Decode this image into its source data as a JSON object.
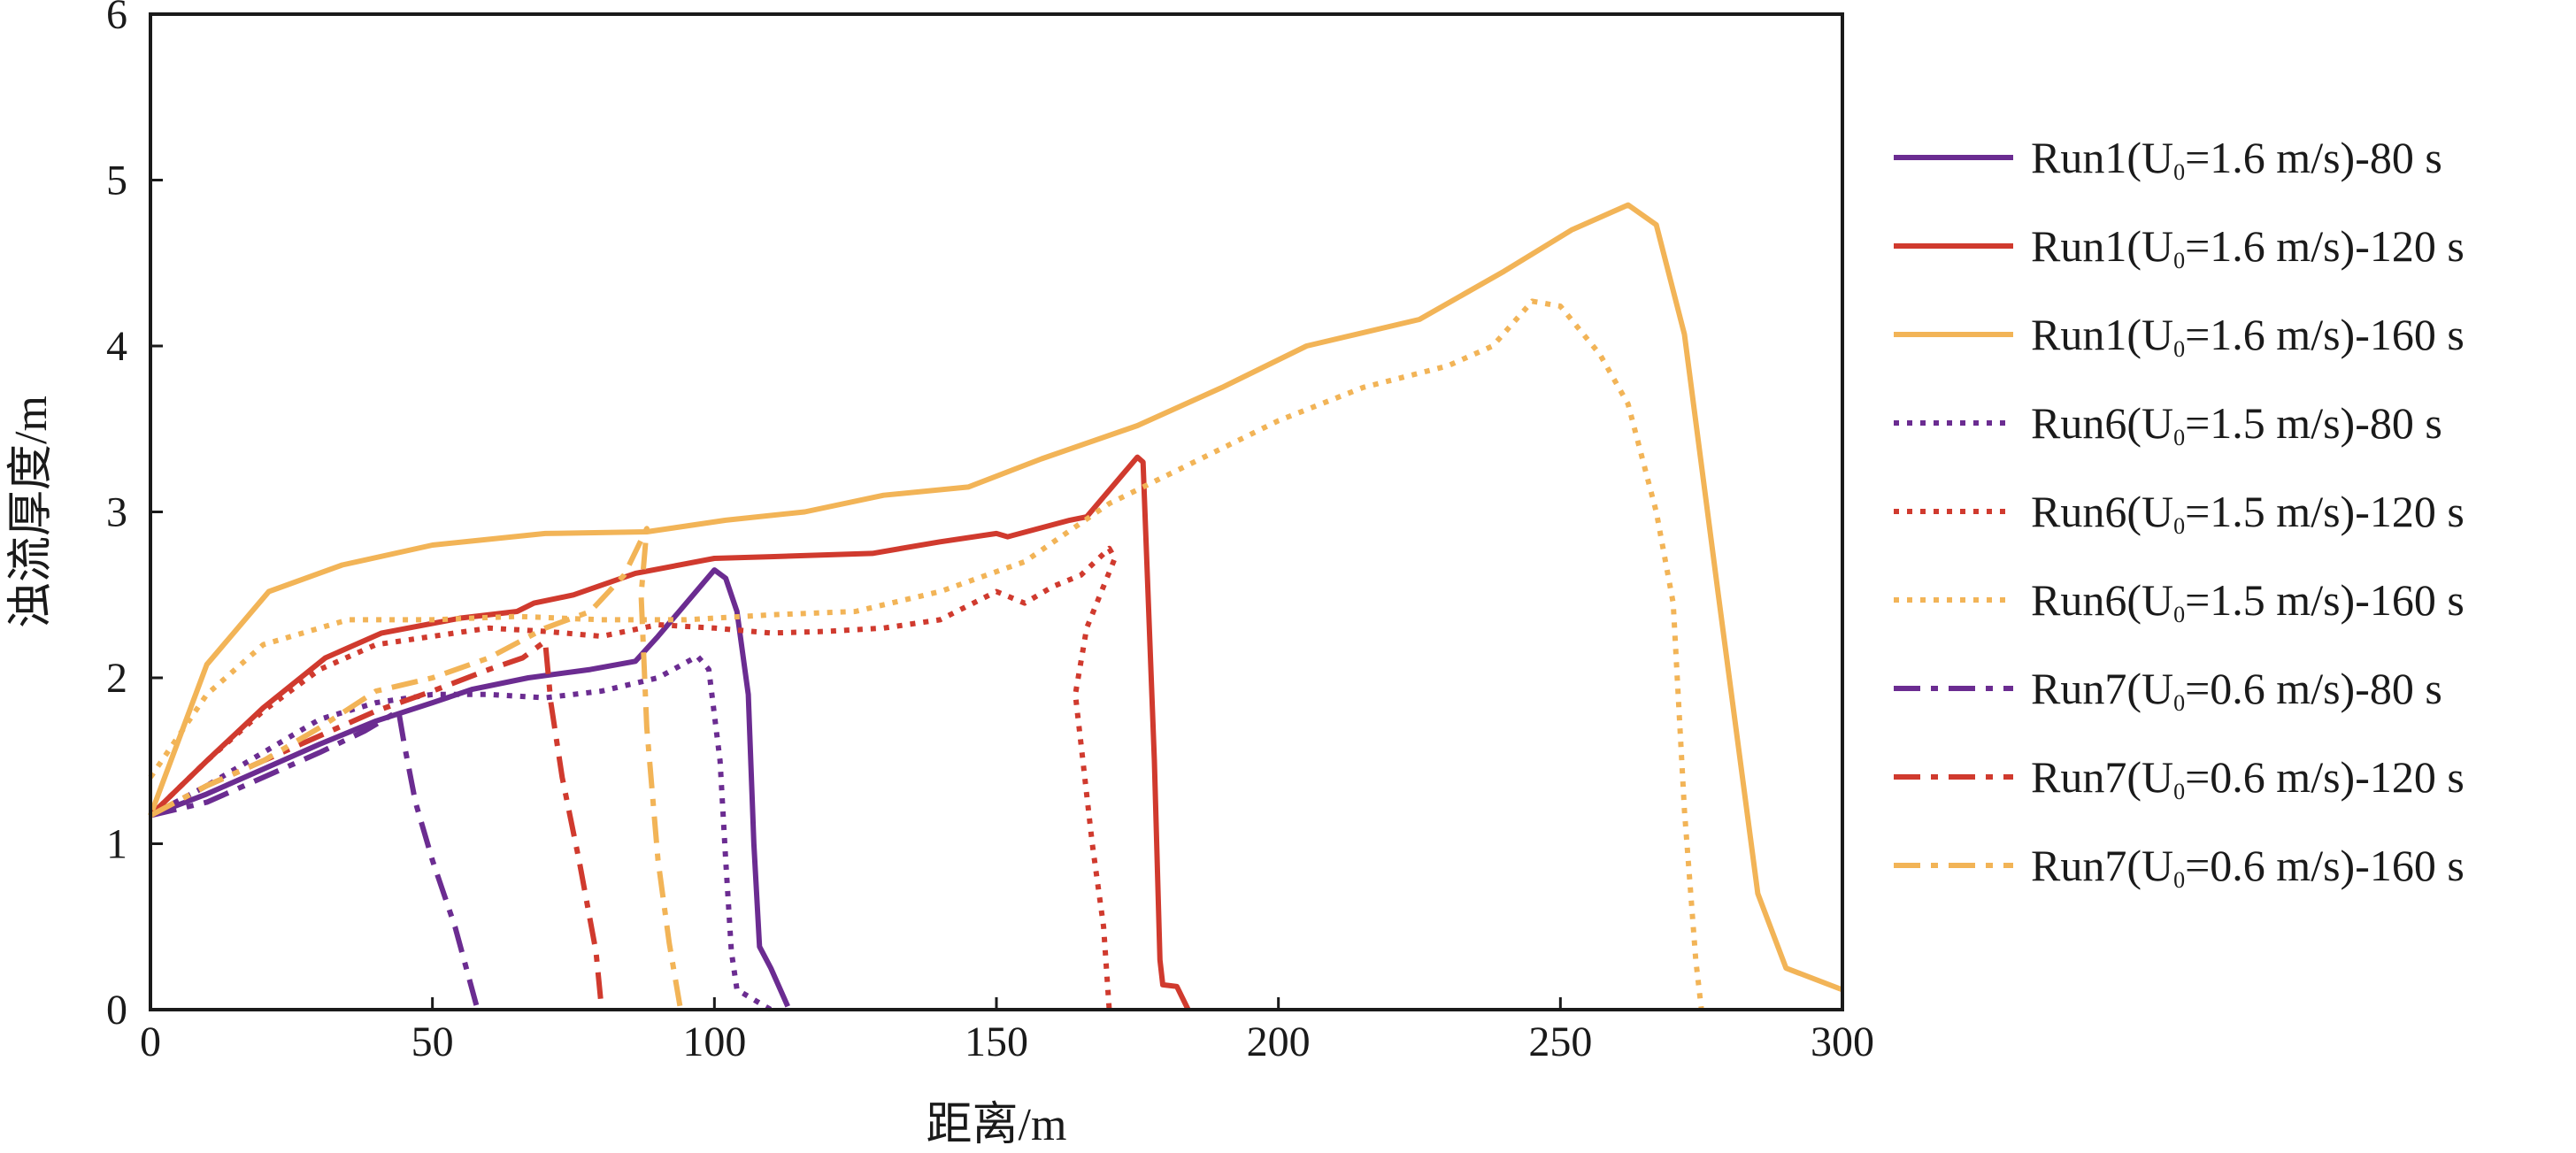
{
  "chart_data": {
    "type": "line",
    "title": "",
    "xlabel": "距离/m",
    "ylabel": "浊流厚度/m",
    "xlim": [
      0,
      300
    ],
    "ylim": [
      0,
      6
    ],
    "xticks": [
      0,
      50,
      100,
      150,
      200,
      250,
      300
    ],
    "yticks": [
      0,
      1,
      2,
      3,
      4,
      5,
      6
    ],
    "grid": false,
    "legend_position": "right",
    "series": [
      {
        "name": "Run1(U0=1.6 m/s)-80 s",
        "label_run": "Run1(U",
        "label_sub": "0",
        "label_rest": "=1.6 m/s)-80 s",
        "color": "#6B2C91",
        "dash": "solid",
        "points": [
          [
            0,
            1.17
          ],
          [
            10,
            1.3
          ],
          [
            20,
            1.45
          ],
          [
            30,
            1.6
          ],
          [
            40,
            1.74
          ],
          [
            50,
            1.85
          ],
          [
            57,
            1.93
          ],
          [
            67,
            2.0
          ],
          [
            78,
            2.05
          ],
          [
            86,
            2.1
          ],
          [
            90,
            2.25
          ],
          [
            95,
            2.45
          ],
          [
            100,
            2.65
          ],
          [
            102,
            2.6
          ],
          [
            104,
            2.4
          ],
          [
            106,
            1.9
          ],
          [
            107,
            1.0
          ],
          [
            108,
            0.38
          ],
          [
            110,
            0.25
          ],
          [
            113,
            0.02
          ]
        ]
      },
      {
        "name": "Run1(U0=1.6 m/s)-120 s",
        "label_run": "Run1(U",
        "label_sub": "0",
        "label_rest": "=1.6 m/s)-120 s",
        "color": "#D03A2E",
        "dash": "solid",
        "points": [
          [
            0,
            1.17
          ],
          [
            10,
            1.5
          ],
          [
            20,
            1.82
          ],
          [
            31,
            2.12
          ],
          [
            41,
            2.27
          ],
          [
            55,
            2.36
          ],
          [
            65,
            2.4
          ],
          [
            68,
            2.45
          ],
          [
            75,
            2.5
          ],
          [
            86,
            2.63
          ],
          [
            100,
            2.72
          ],
          [
            110,
            2.73
          ],
          [
            128,
            2.75
          ],
          [
            140,
            2.82
          ],
          [
            150,
            2.87
          ],
          [
            152,
            2.85
          ],
          [
            163,
            2.95
          ],
          [
            166,
            2.97
          ],
          [
            175,
            3.33
          ],
          [
            176,
            3.3
          ],
          [
            178,
            1.5
          ],
          [
            179,
            0.3
          ],
          [
            179.5,
            0.15
          ],
          [
            182,
            0.14
          ],
          [
            184,
            0.0
          ]
        ]
      },
      {
        "name": "Run1(U0=1.6 m/s)-160 s",
        "label_run": "Run1(U",
        "label_sub": "0",
        "label_rest": "=1.6 m/s)-160 s",
        "color": "#F2B457",
        "dash": "solid",
        "points": [
          [
            0,
            1.17
          ],
          [
            10,
            2.08
          ],
          [
            21,
            2.52
          ],
          [
            34,
            2.68
          ],
          [
            50,
            2.8
          ],
          [
            70,
            2.87
          ],
          [
            88,
            2.88
          ],
          [
            102,
            2.95
          ],
          [
            116,
            3.0
          ],
          [
            130,
            3.1
          ],
          [
            145,
            3.15
          ],
          [
            158,
            3.32
          ],
          [
            175,
            3.52
          ],
          [
            190,
            3.75
          ],
          [
            205,
            4.0
          ],
          [
            225,
            4.16
          ],
          [
            240,
            4.45
          ],
          [
            252,
            4.7
          ],
          [
            262,
            4.85
          ],
          [
            267,
            4.73
          ],
          [
            272,
            4.07
          ],
          [
            278,
            2.5
          ],
          [
            285,
            0.7
          ],
          [
            290,
            0.25
          ],
          [
            300,
            0.12
          ]
        ]
      },
      {
        "name": "Run6(U0=1.5 m/s)-80 s",
        "label_run": "Run6(U",
        "label_sub": "0",
        "label_rest": "=1.5 m/s)-80 s",
        "color": "#6B2C91",
        "dash": "dot",
        "points": [
          [
            0,
            1.17
          ],
          [
            10,
            1.35
          ],
          [
            20,
            1.55
          ],
          [
            30,
            1.75
          ],
          [
            40,
            1.85
          ],
          [
            50,
            1.9
          ],
          [
            60,
            1.9
          ],
          [
            70,
            1.88
          ],
          [
            80,
            1.92
          ],
          [
            90,
            2.0
          ],
          [
            97,
            2.13
          ],
          [
            99,
            2.05
          ],
          [
            101,
            1.5
          ],
          [
            102,
            0.9
          ],
          [
            103,
            0.35
          ],
          [
            104,
            0.12
          ],
          [
            106,
            0.08
          ],
          [
            110,
            0.0
          ]
        ]
      },
      {
        "name": "Run6(U0=1.5 m/s)-120 s",
        "label_run": "Run6(U",
        "label_sub": "0",
        "label_rest": "=1.5 m/s)-120 s",
        "color": "#D03A2E",
        "dash": "dot",
        "points": [
          [
            0,
            1.17
          ],
          [
            10,
            1.5
          ],
          [
            20,
            1.8
          ],
          [
            30,
            2.05
          ],
          [
            40,
            2.2
          ],
          [
            50,
            2.25
          ],
          [
            60,
            2.3
          ],
          [
            70,
            2.28
          ],
          [
            80,
            2.25
          ],
          [
            90,
            2.32
          ],
          [
            100,
            2.3
          ],
          [
            110,
            2.27
          ],
          [
            120,
            2.28
          ],
          [
            130,
            2.3
          ],
          [
            140,
            2.35
          ],
          [
            150,
            2.52
          ],
          [
            155,
            2.45
          ],
          [
            160,
            2.55
          ],
          [
            165,
            2.62
          ],
          [
            170,
            2.78
          ],
          [
            171,
            2.72
          ],
          [
            166,
            2.3
          ],
          [
            164,
            1.9
          ],
          [
            165,
            1.6
          ],
          [
            167,
            1.0
          ],
          [
            169,
            0.5
          ],
          [
            170,
            0.0
          ]
        ]
      },
      {
        "name": "Run6(U0=1.5 m/s)-160 s",
        "label_run": "Run6(U",
        "label_sub": "0",
        "label_rest": "=1.5 m/s)-160 s",
        "color": "#F2B457",
        "dash": "dot",
        "points": [
          [
            0,
            1.4
          ],
          [
            10,
            1.9
          ],
          [
            20,
            2.2
          ],
          [
            35,
            2.35
          ],
          [
            50,
            2.35
          ],
          [
            65,
            2.37
          ],
          [
            80,
            2.35
          ],
          [
            95,
            2.35
          ],
          [
            110,
            2.38
          ],
          [
            125,
            2.4
          ],
          [
            140,
            2.52
          ],
          [
            155,
            2.7
          ],
          [
            170,
            3.05
          ],
          [
            185,
            3.3
          ],
          [
            200,
            3.55
          ],
          [
            215,
            3.75
          ],
          [
            230,
            3.88
          ],
          [
            238,
            4.0
          ],
          [
            245,
            4.27
          ],
          [
            250,
            4.24
          ],
          [
            257,
            3.95
          ],
          [
            262,
            3.65
          ],
          [
            267,
            3.0
          ],
          [
            270,
            2.45
          ],
          [
            272,
            1.2
          ],
          [
            274,
            0.3
          ],
          [
            275,
            0.0
          ]
        ]
      },
      {
        "name": "Run7(U0=0.6 m/s)-80 s",
        "label_run": "Run7(U",
        "label_sub": "0",
        "label_rest": "=0.6 m/s)-80 s",
        "color": "#6B2C91",
        "dash": "dashdot",
        "points": [
          [
            0,
            1.17
          ],
          [
            10,
            1.25
          ],
          [
            20,
            1.4
          ],
          [
            30,
            1.55
          ],
          [
            38,
            1.68
          ],
          [
            44,
            1.8
          ],
          [
            45,
            1.6
          ],
          [
            47,
            1.25
          ],
          [
            50,
            0.9
          ],
          [
            54,
            0.5
          ],
          [
            58,
            0.0
          ]
        ]
      },
      {
        "name": "Run7(U0=0.6 m/s)-120 s",
        "label_run": "Run7(U",
        "label_sub": "0",
        "label_rest": "=0.6 m/s)-120 s",
        "color": "#D03A2E",
        "dash": "dashdot",
        "points": [
          [
            0,
            1.17
          ],
          [
            10,
            1.35
          ],
          [
            20,
            1.5
          ],
          [
            30,
            1.65
          ],
          [
            40,
            1.8
          ],
          [
            50,
            1.92
          ],
          [
            60,
            2.05
          ],
          [
            66,
            2.12
          ],
          [
            70,
            2.22
          ],
          [
            71,
            1.85
          ],
          [
            73,
            1.4
          ],
          [
            76,
            0.9
          ],
          [
            79,
            0.35
          ],
          [
            80,
            0.0
          ]
        ]
      },
      {
        "name": "Run7(U0=0.6 m/s)-160 s",
        "label_run": "Run7(U",
        "label_sub": "0",
        "label_rest": "=0.6 m/s)-160 s",
        "color": "#F2B457",
        "dash": "dashdot",
        "points": [
          [
            0,
            1.17
          ],
          [
            10,
            1.35
          ],
          [
            20,
            1.5
          ],
          [
            30,
            1.7
          ],
          [
            40,
            1.92
          ],
          [
            50,
            2.0
          ],
          [
            60,
            2.12
          ],
          [
            70,
            2.3
          ],
          [
            78,
            2.4
          ],
          [
            84,
            2.62
          ],
          [
            88,
            2.9
          ],
          [
            87,
            2.5
          ],
          [
            88,
            1.7
          ],
          [
            90,
            0.9
          ],
          [
            92,
            0.4
          ],
          [
            94,
            0.0
          ]
        ]
      }
    ]
  }
}
